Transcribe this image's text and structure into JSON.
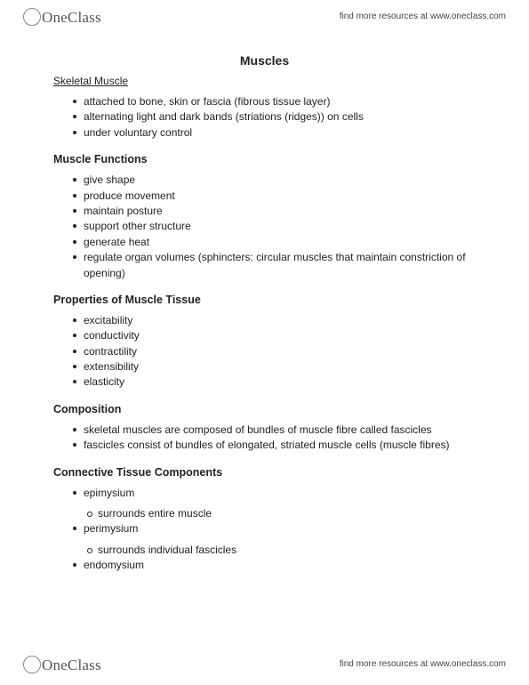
{
  "brand": {
    "name": "OneClass"
  },
  "resources_text": "find more resources at www.oneclass.com",
  "doc": {
    "title": "Muscles",
    "section1": {
      "heading": "Skeletal Muscle",
      "items": [
        "attached to bone, skin or fascia (fibrous tissue layer)",
        "alternating light and dark bands (striations (ridges)) on cells",
        "under voluntary control"
      ]
    },
    "section2": {
      "heading": "Muscle Functions",
      "items": [
        "give shape",
        "produce movement",
        "maintain posture",
        "support other structure",
        "generate heat",
        "regulate organ volumes (sphincters: circular muscles that maintain constriction of opening)"
      ]
    },
    "section3": {
      "heading": "Properties of Muscle Tissue",
      "items": [
        "excitability",
        "conductivity",
        "contractility",
        "extensibility",
        "elasticity"
      ]
    },
    "section4": {
      "heading": "Composition",
      "items": [
        "skeletal muscles are composed of bundles of muscle fibre called fascicles",
        "fascicles consist of bundles of elongated, striated muscle cells (muscle fibres)"
      ]
    },
    "section5": {
      "heading": "Connective Tissue Components",
      "items": [
        {
          "text": "epimysium",
          "sub": [
            "surrounds entire muscle"
          ]
        },
        {
          "text": "perimysium",
          "sub": [
            "surrounds individual fascicles"
          ]
        },
        {
          "text": "endomysium",
          "sub": []
        }
      ]
    }
  }
}
